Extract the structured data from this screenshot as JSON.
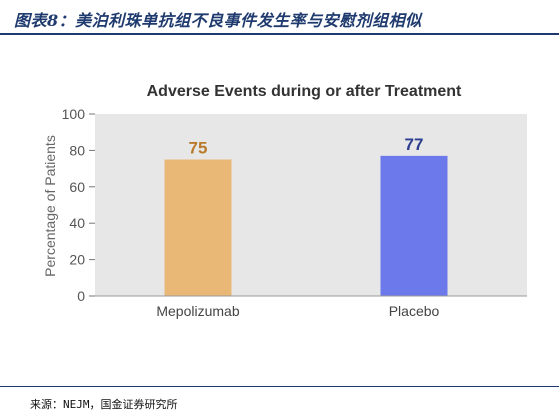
{
  "report": {
    "title": "图表8：美泊利珠单抗组不良事件发生率与安慰剂组相似",
    "source": "来源：NEJM，国金证券研究所"
  },
  "chart_data": {
    "type": "bar",
    "title": "Adverse Events during or after Treatment",
    "xlabel": "",
    "ylabel": "Percentage of Patients",
    "categories": [
      "Mepolizumab",
      "Placebo"
    ],
    "values": [
      75,
      77
    ],
    "data_labels": [
      "75",
      "77"
    ],
    "ylim": [
      0,
      100
    ],
    "yticks": [
      "0",
      "20",
      "40",
      "60",
      "80",
      "100"
    ],
    "grid": false,
    "colors": {
      "bars": [
        "#e9b877",
        "#6b79ea"
      ],
      "labels": [
        "#b87b2c",
        "#2c3d8e"
      ],
      "plot_background": "#e7e7e8",
      "title_color": "#1f3a6e"
    }
  }
}
